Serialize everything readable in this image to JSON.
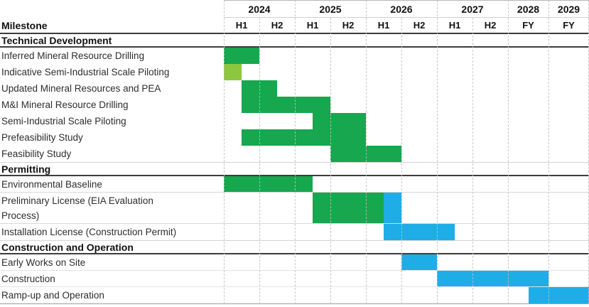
{
  "table": {
    "milestone_header": "Milestone"
  },
  "colors": {
    "green": "#17a74f",
    "light_green": "#8dc63f",
    "blue": "#1fade8"
  },
  "chart_data": {
    "type": "gantt",
    "title": "",
    "time_axis": {
      "years": [
        {
          "label": "2024",
          "columns": [
            "H1",
            "H2"
          ]
        },
        {
          "label": "2025",
          "columns": [
            "H1",
            "H2"
          ]
        },
        {
          "label": "2026",
          "columns": [
            "H1",
            "H2"
          ]
        },
        {
          "label": "2027",
          "columns": [
            "H1",
            "H2"
          ]
        },
        {
          "label": "2028",
          "columns": [
            "FY"
          ]
        },
        {
          "label": "2029",
          "columns": [
            "FY"
          ]
        }
      ],
      "unit_note": "bar start/end are in half-year units: 0 = start of 2024 H1, 8 = start of FY 2028, 9 = start of FY 2029, 10 = end of 2029"
    },
    "sections": [
      {
        "title": "Technical Development",
        "rows": [
          {
            "label": "Inferred Mineral Resource Drilling",
            "bars": [
              {
                "start": 0,
                "end": 1,
                "color": "green"
              }
            ]
          },
          {
            "label": "Indicative Semi-Industrial Scale Piloting",
            "bars": [
              {
                "start": 0,
                "end": 0.5,
                "color": "light_green"
              }
            ]
          },
          {
            "label": "Updated Mineral Resources and PEA",
            "bars": [
              {
                "start": 0.5,
                "end": 1.5,
                "color": "green"
              }
            ]
          },
          {
            "label": "M&I Mineral Resource Drilling",
            "bars": [
              {
                "start": 0.5,
                "end": 3,
                "color": "green"
              }
            ]
          },
          {
            "label": "Semi-Industrial Scale Piloting",
            "bars": [
              {
                "start": 2.5,
                "end": 4,
                "color": "green"
              }
            ]
          },
          {
            "label": "Prefeasibility Study",
            "bars": [
              {
                "start": 0.5,
                "end": 4,
                "color": "green"
              }
            ]
          },
          {
            "label": "Feasibility Study",
            "bars": [
              {
                "start": 3,
                "end": 5,
                "color": "green"
              }
            ]
          }
        ]
      },
      {
        "title": "Permitting",
        "rows": [
          {
            "label": "Environmental Baseline",
            "bars": [
              {
                "start": 0,
                "end": 2.5,
                "color": "green"
              }
            ]
          },
          {
            "label": "Preliminary License (EIA Evaluation",
            "label_line2": "Process)",
            "bars": [
              {
                "start": 2.5,
                "end": 4.5,
                "color": "green"
              },
              {
                "start": 4.5,
                "end": 5,
                "color": "blue"
              }
            ]
          },
          {
            "label": "Installation License (Construction Permit)",
            "bars": [
              {
                "start": 4.5,
                "end": 6.5,
                "color": "blue"
              }
            ]
          }
        ]
      },
      {
        "title": "Construction and Operation",
        "rows": [
          {
            "label": "Early Works on Site",
            "bars": [
              {
                "start": 5,
                "end": 6,
                "color": "blue"
              }
            ]
          },
          {
            "label": "Construction",
            "bars": [
              {
                "start": 6,
                "end": 9,
                "color": "blue"
              }
            ]
          },
          {
            "label": "Ramp-up and Operation",
            "bars": [
              {
                "start": 8.5,
                "end": 10,
                "color": "blue"
              }
            ]
          }
        ]
      }
    ]
  }
}
